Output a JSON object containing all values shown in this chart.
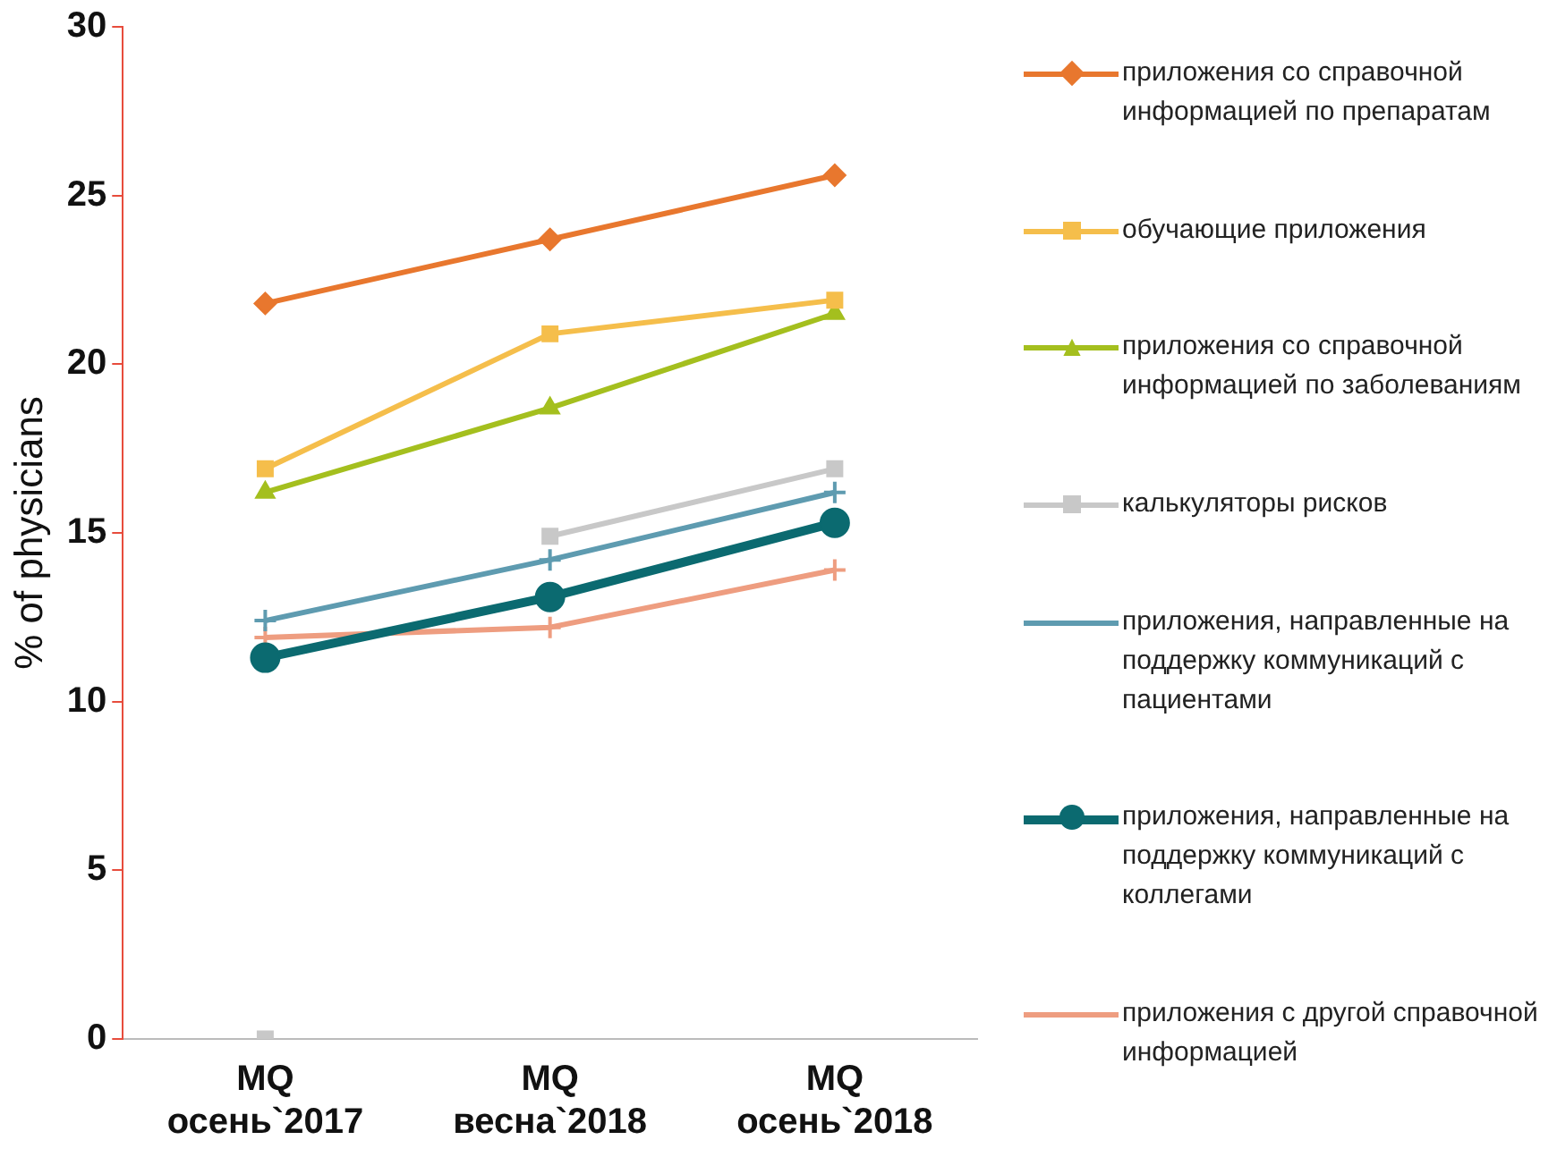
{
  "chart_data": {
    "type": "line",
    "ylabel": "% of physicians",
    "categories": [
      "MQ осень`2017",
      "MQ весна`2018",
      "MQ осень`2018"
    ],
    "ylim": [
      0,
      30
    ],
    "yticks": [
      0,
      5,
      10,
      15,
      20,
      25,
      30
    ],
    "grid": false,
    "legend": "right",
    "series": [
      {
        "name": "приложения со справочной информацией по препаратам",
        "color": "#e8772e",
        "marker": "diamond",
        "values": [
          21.8,
          23.7,
          25.6
        ]
      },
      {
        "name": "обучающие приложения",
        "color": "#f5be4b",
        "marker": "square",
        "values": [
          16.9,
          20.9,
          21.9
        ]
      },
      {
        "name": "приложения со справочной информацией по заболеваниям",
        "color": "#a4bf1e",
        "marker": "triangle",
        "values": [
          16.2,
          18.7,
          21.5
        ]
      },
      {
        "name": "калькуляторы рисков",
        "color": "#c8c8c8",
        "marker": "square",
        "values": [
          null,
          14.9,
          16.9
        ]
      },
      {
        "type": "scatter",
        "color": "#c8c8c8",
        "marker": "square",
        "values": [
          0,
          null,
          null
        ]
      },
      {
        "name": "приложения, направленные на поддержку коммуникаций с пациентами",
        "color": "#5e9bb0",
        "marker": "cross",
        "values": [
          12.4,
          14.2,
          16.2
        ]
      },
      {
        "name": "приложения, направленные на поддержку коммуникаций с коллегами",
        "color": "#0b6a70",
        "marker": "circle",
        "values": [
          11.3,
          13.1,
          15.3
        ]
      },
      {
        "name": "приложения с другой справочной информацией",
        "color": "#ee9d80",
        "marker": "cross",
        "values": [
          11.9,
          12.2,
          13.9
        ]
      }
    ]
  }
}
